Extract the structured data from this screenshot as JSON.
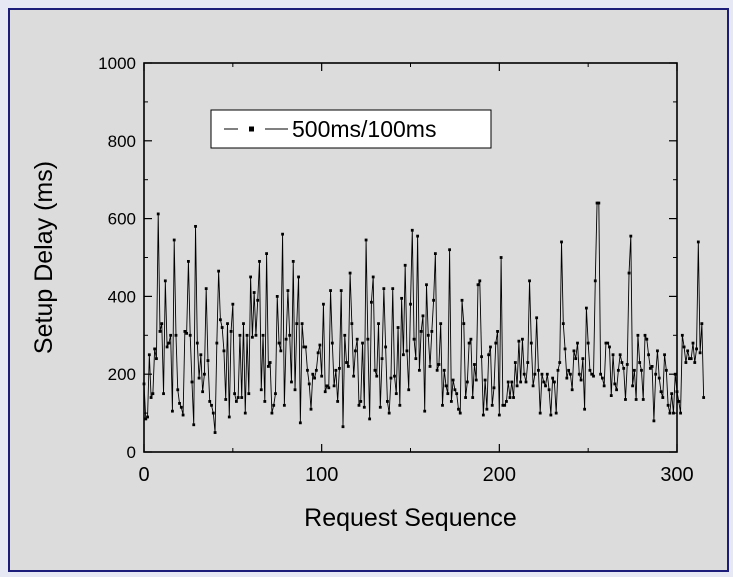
{
  "chart_data": {
    "type": "line",
    "title": "",
    "xlabel": "Request Sequence",
    "ylabel": "Setup Delay (ms)",
    "xlim": [
      0,
      300
    ],
    "ylim": [
      0,
      1000
    ],
    "x_ticks": [
      0,
      100,
      200,
      300
    ],
    "y_ticks": [
      0,
      200,
      400,
      600,
      800,
      1000
    ],
    "grid": false,
    "legend": {
      "position": "top-left",
      "entries": [
        "500ms/100ms"
      ]
    },
    "marker": "square",
    "line_color": "#000000",
    "x_start": 0,
    "x_step": 1,
    "series": [
      {
        "name": "500ms/100ms",
        "values": [
          175,
          85,
          90,
          250,
          140,
          150,
          265,
          240,
          612,
          310,
          330,
          150,
          440,
          270,
          280,
          300,
          105,
          545,
          300,
          160,
          125,
          115,
          95,
          310,
          305,
          490,
          300,
          180,
          70,
          580,
          280,
          190,
          250,
          155,
          200,
          420,
          235,
          130,
          120,
          100,
          50,
          280,
          465,
          340,
          320,
          260,
          135,
          330,
          90,
          310,
          380,
          150,
          130,
          140,
          300,
          140,
          330,
          100,
          300,
          150,
          450,
          295,
          410,
          300,
          390,
          490,
          160,
          300,
          130,
          510,
          220,
          230,
          100,
          120,
          150,
          400,
          280,
          260,
          560,
          120,
          290,
          415,
          300,
          180,
          490,
          160,
          330,
          450,
          75,
          330,
          270,
          270,
          210,
          175,
          110,
          200,
          190,
          210,
          255,
          275,
          195,
          380,
          155,
          170,
          165,
          415,
          280,
          170,
          210,
          130,
          215,
          415,
          65,
          300,
          230,
          220,
          460,
          330,
          195,
          260,
          290,
          120,
          130,
          280,
          115,
          545,
          290,
          85,
          385,
          450,
          210,
          195,
          330,
          115,
          240,
          420,
          270,
          130,
          100,
          190,
          420,
          195,
          150,
          320,
          120,
          395,
          250,
          480,
          260,
          160,
          380,
          570,
          290,
          240,
          555,
          210,
          310,
          350,
          105,
          430,
          300,
          220,
          310,
          390,
          510,
          210,
          225,
          330,
          120,
          210,
          170,
          150,
          520,
          130,
          185,
          160,
          150,
          110,
          100,
          390,
          330,
          140,
          180,
          280,
          290,
          140,
          225,
          185,
          430,
          440,
          245,
          95,
          185,
          110,
          250,
          270,
          120,
          165,
          280,
          310,
          95,
          500,
          120,
          120,
          130,
          180,
          140,
          180,
          140,
          230,
          170,
          285,
          180,
          290,
          200,
          180,
          230,
          440,
          280,
          170,
          200,
          345,
          210,
          100,
          200,
          180,
          170,
          200,
          160,
          95,
          190,
          180,
          100,
          210,
          230,
          540,
          330,
          265,
          190,
          210,
          200,
          160,
          260,
          240,
          280,
          200,
          185,
          240,
          110,
          370,
          280,
          210,
          200,
          195,
          440,
          640,
          640,
          200,
          190,
          170,
          280,
          280,
          270,
          145,
          250,
          175,
          160,
          210,
          250,
          230,
          215,
          135,
          225,
          460,
          555,
          170,
          210,
          135,
          300,
          230,
          210,
          135,
          300,
          290,
          250,
          215,
          220,
          80,
          200,
          260,
          190,
          155,
          140,
          250,
          210,
          120,
          100,
          150,
          100,
          200,
          155,
          130,
          100,
          300,
          270,
          230,
          260,
          240,
          240,
          280,
          230,
          265,
          540,
          255,
          330,
          140
        ]
      }
    ]
  }
}
